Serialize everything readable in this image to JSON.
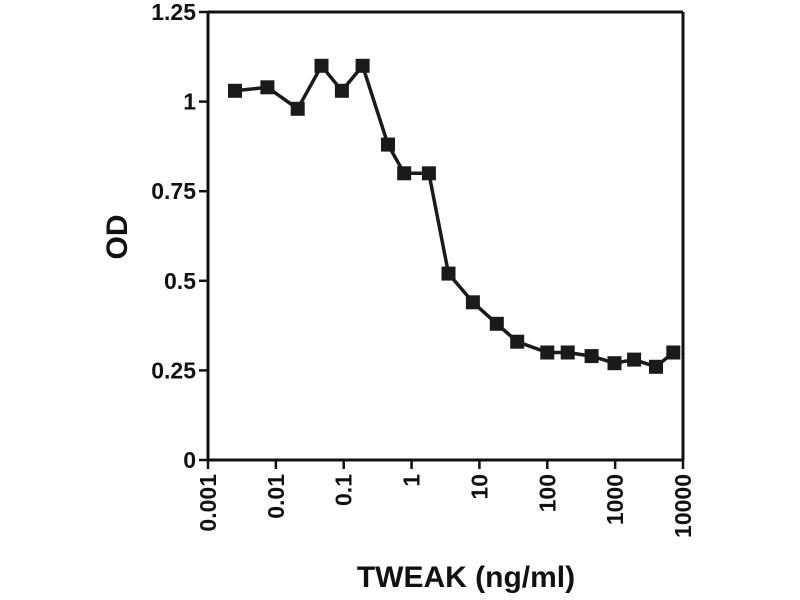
{
  "chart_data": {
    "type": "line",
    "title": "",
    "xlabel": "TWEAK (ng/ml)",
    "ylabel": "OD",
    "x_scale": "log",
    "xlim": [
      0.001,
      10000
    ],
    "ylim": [
      0,
      1.25
    ],
    "x_ticks": [
      {
        "value": 0.001,
        "label": "0.001"
      },
      {
        "value": 0.01,
        "label": "0.01"
      },
      {
        "value": 0.1,
        "label": "0.1"
      },
      {
        "value": 1,
        "label": "1"
      },
      {
        "value": 10,
        "label": "10"
      },
      {
        "value": 100,
        "label": "100"
      },
      {
        "value": 1000,
        "label": "1000"
      },
      {
        "value": 10000,
        "label": "10000"
      }
    ],
    "y_ticks": [
      {
        "value": 0,
        "label": "0"
      },
      {
        "value": 0.25,
        "label": "0.25"
      },
      {
        "value": 0.5,
        "label": "0.5"
      },
      {
        "value": 0.75,
        "label": "0.75"
      },
      {
        "value": 1,
        "label": "1"
      },
      {
        "value": 1.25,
        "label": "1.25"
      }
    ],
    "grid": false,
    "legend": "none",
    "series": [
      {
        "color": "#1a1a1a",
        "marker": "square",
        "points": [
          {
            "x": 0.0025,
            "y": 1.03
          },
          {
            "x": 0.0075,
            "y": 1.04
          },
          {
            "x": 0.021,
            "y": 0.98
          },
          {
            "x": 0.047,
            "y": 1.1
          },
          {
            "x": 0.094,
            "y": 1.03
          },
          {
            "x": 0.19,
            "y": 1.1
          },
          {
            "x": 0.45,
            "y": 0.88
          },
          {
            "x": 0.78,
            "y": 0.8
          },
          {
            "x": 1.8,
            "y": 0.8
          },
          {
            "x": 3.5,
            "y": 0.52
          },
          {
            "x": 8,
            "y": 0.44
          },
          {
            "x": 18,
            "y": 0.38
          },
          {
            "x": 36,
            "y": 0.33
          },
          {
            "x": 100,
            "y": 0.3
          },
          {
            "x": 200,
            "y": 0.3
          },
          {
            "x": 450,
            "y": 0.29
          },
          {
            "x": 980,
            "y": 0.27
          },
          {
            "x": 1900,
            "y": 0.28
          },
          {
            "x": 4000,
            "y": 0.26
          },
          {
            "x": 7200,
            "y": 0.3
          }
        ]
      }
    ]
  }
}
